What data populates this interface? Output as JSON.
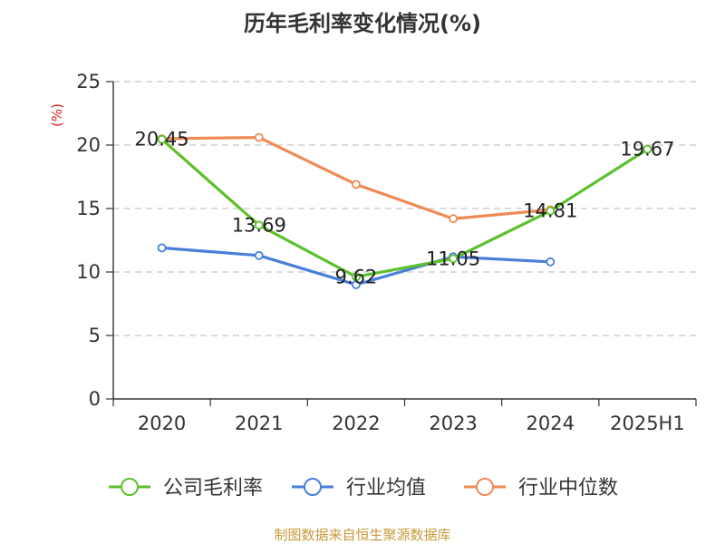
{
  "title": "历年毛利率变化情况(%)",
  "source": "制图数据来自恒生聚源数据库",
  "chart_data": {
    "type": "line",
    "title": "历年毛利率变化情况(%)",
    "ylabel": "(%)",
    "xlabel": "",
    "categories": [
      "2020",
      "2021",
      "2022",
      "2023",
      "2024",
      "2025H1"
    ],
    "ylim": [
      0,
      25
    ],
    "yticks": [
      0,
      5,
      10,
      15,
      20,
      25
    ],
    "grid": true,
    "legend_position": "bottom",
    "series": [
      {
        "name": "公司毛利率",
        "color": "#5cc12a",
        "values": [
          20.45,
          13.69,
          9.62,
          11.05,
          14.81,
          19.67
        ],
        "labels": [
          "20.45",
          "13.69",
          "9.62",
          "11.05",
          "14.81",
          "19.67"
        ]
      },
      {
        "name": "行业均值",
        "color": "#4a7fd9",
        "values": [
          11.9,
          11.3,
          9.0,
          11.2,
          10.8,
          null
        ]
      },
      {
        "name": "行业中位数",
        "color": "#f08a55",
        "values": [
          20.5,
          20.6,
          16.9,
          14.2,
          14.9,
          null
        ]
      }
    ]
  }
}
